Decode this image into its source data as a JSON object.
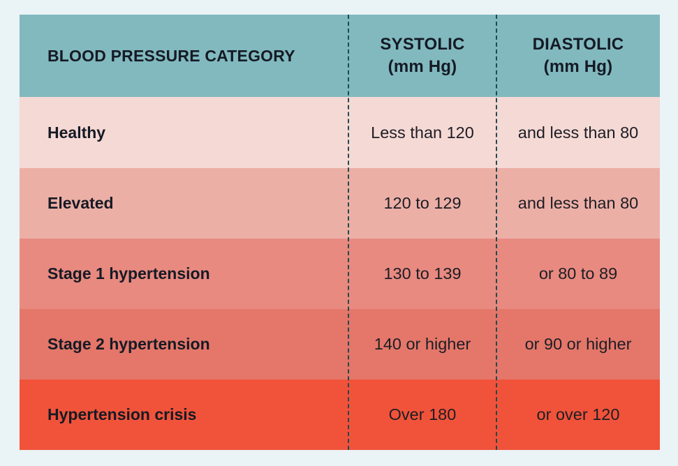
{
  "header": {
    "category": "BLOOD PRESSURE CATEGORY",
    "systolic_line1": "SYSTOLIC",
    "systolic_line2": "(mm Hg)",
    "diastolic_line1": "DIASTOLIC",
    "diastolic_line2": "(mm Hg)"
  },
  "colors": {
    "header": "#81b9bf",
    "healthy": "#f5d9d5",
    "elevated": "#ecafa6",
    "stage1": "#e88a80",
    "stage2": "#e4776a",
    "crisis": "#f1533a"
  },
  "rows": [
    {
      "category": "Healthy",
      "systolic": "Less than 120",
      "diastolic": "and less than 80"
    },
    {
      "category": "Elevated",
      "systolic": "120 to 129",
      "diastolic": "and less than 80"
    },
    {
      "category": "Stage 1 hypertension",
      "systolic": "130 to 139",
      "diastolic": "or 80 to 89"
    },
    {
      "category": "Stage 2 hypertension",
      "systolic": "140 or higher",
      "diastolic": "or 90 or higher"
    },
    {
      "category": "Hypertension crisis",
      "systolic": "Over 180",
      "diastolic": "or over 120"
    }
  ]
}
